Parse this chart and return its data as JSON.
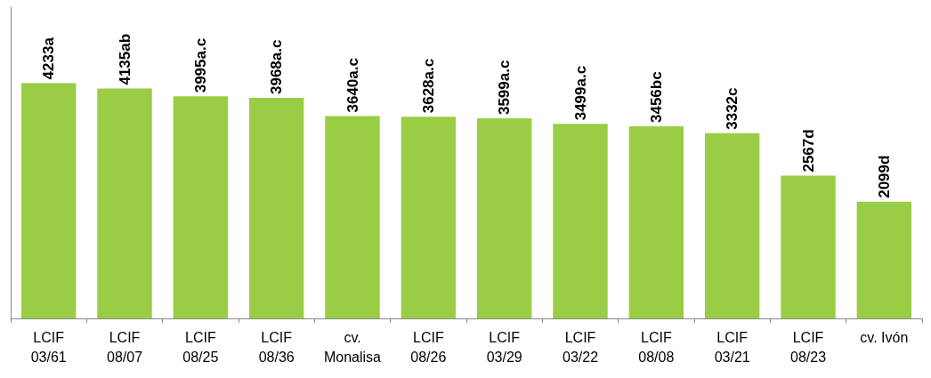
{
  "chart_data": {
    "type": "bar",
    "categories": [
      "LCIF\n03/61",
      "LCIF\n08/07",
      "LCIF\n08/25",
      "LCIF\n08/36",
      "cv.\nMonalisa",
      "LCIF\n08/26",
      "LCIF\n03/29",
      "LCIF\n03/22",
      "LCIF\n08/08",
      "LCIF\n03/21",
      "LCIF\n08/23",
      "cv. Ivón"
    ],
    "values": [
      4233,
      4135,
      3995,
      3968,
      3640,
      3628,
      3599,
      3499,
      3456,
      3332,
      2567,
      2099
    ],
    "value_labels": [
      "4233a",
      "4135ab",
      "3995a.c",
      "3968a.c",
      "3640a.c",
      "3628a.c",
      "3599a.c",
      "3499a.c",
      "3456bc",
      "3332c",
      "2567d",
      "2099d"
    ],
    "color": "#9acd45",
    "ylim": [
      0,
      5600
    ],
    "grid": false
  }
}
